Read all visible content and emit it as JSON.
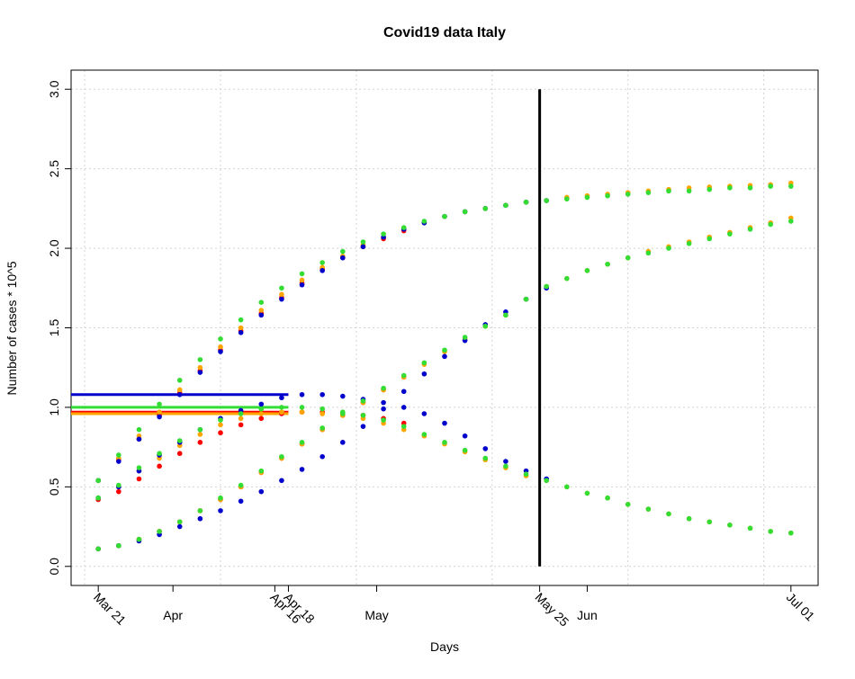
{
  "chart_data": {
    "type": "scatter",
    "title": "Covid19 data Italy",
    "x_label": "Days",
    "y_label": "Number of cases * 10^5",
    "xlim": [
      "03-17",
      "07-05"
    ],
    "ylim": [
      -0.12,
      3.12
    ],
    "xticks": [
      {
        "value": "03-21",
        "label": "Mar 21",
        "rotated": true
      },
      {
        "value": "04-01",
        "label": "Apr"
      },
      {
        "value": "04-16",
        "label": "Apr 16",
        "rotated": true
      },
      {
        "value": "04-18",
        "label": "Apr 18",
        "rotated": true
      },
      {
        "value": "05-01",
        "label": "May"
      },
      {
        "value": "05-25",
        "label": "May 25",
        "rotated": true
      },
      {
        "value": "06-01",
        "label": "Jun"
      },
      {
        "value": "07-01",
        "label": "Jul 01",
        "rotated": true
      }
    ],
    "yticks": [
      {
        "value": 0,
        "label": "0.0"
      },
      0.5,
      {
        "value": 1,
        "label": "1.0"
      },
      1.5,
      {
        "value": 2,
        "label": "2.0"
      },
      2.5,
      {
        "value": 3,
        "label": "3.0"
      }
    ],
    "grid": true,
    "xgrid": [
      "03-19",
      "04-08",
      "04-28",
      "05-18",
      "06-07",
      "06-27"
    ],
    "x": [
      "03-21",
      "03-24",
      "03-27",
      "03-30",
      "04-02",
      "04-05",
      "04-08",
      "04-11",
      "04-14",
      "04-17",
      "04-20",
      "04-23",
      "04-26",
      "04-29",
      "05-02",
      "05-05",
      "05-08",
      "05-11",
      "05-14",
      "05-17",
      "05-20",
      "05-23",
      "05-26",
      "05-29",
      "06-01",
      "06-04",
      "06-07",
      "06-10",
      "06-13",
      "06-16",
      "06-19",
      "06-22",
      "06-25",
      "06-28",
      "07-01"
    ],
    "series": [
      {
        "color": "#ff0000",
        "values": [
          0.54,
          0.67,
          0.8,
          0.95,
          1.09,
          1.23,
          1.36,
          1.48,
          1.59,
          1.69,
          1.78,
          1.87,
          1.94,
          2.01,
          2.06,
          2.11,
          null,
          null,
          null,
          null,
          null,
          null,
          null,
          null,
          null,
          null,
          null,
          null,
          null,
          null,
          null,
          null,
          null,
          null,
          null
        ]
      },
      {
        "color": "#ff0000",
        "values": [
          0.11,
          0.13,
          0.17,
          0.22,
          0.28,
          0.35,
          0.42,
          0.5,
          0.59,
          0.68,
          0.77,
          0.86,
          0.95,
          1.03,
          1.11,
          1.19,
          null,
          null,
          null,
          null,
          null,
          null,
          null,
          null,
          null,
          null,
          null,
          null,
          null,
          null,
          null,
          null,
          null,
          null,
          null
        ]
      },
      {
        "color": "#ff0000",
        "values": [
          0.42,
          0.47,
          0.55,
          0.63,
          0.71,
          0.78,
          0.84,
          0.89,
          0.93,
          0.96,
          0.97,
          0.97,
          0.96,
          0.95,
          0.93,
          0.9,
          null,
          null,
          null,
          null,
          null,
          null,
          null,
          null,
          null,
          null,
          null,
          null,
          null,
          null,
          null,
          null,
          null,
          null,
          null
        ]
      },
      {
        "color": "#ffa500",
        "values": [
          0.54,
          0.68,
          0.82,
          0.97,
          1.11,
          1.25,
          1.38,
          1.5,
          1.61,
          1.71,
          1.8,
          1.88,
          1.95,
          2.02,
          2.07,
          2.12,
          2.16,
          2.2,
          2.23,
          2.25,
          2.27,
          2.29,
          2.3,
          2.32,
          2.33,
          2.34,
          2.35,
          2.36,
          2.37,
          2.38,
          2.385,
          2.39,
          2.395,
          2.4,
          2.41
        ]
      },
      {
        "color": "#ffa500",
        "values": [
          0.11,
          0.13,
          0.17,
          0.22,
          0.28,
          0.35,
          0.42,
          0.5,
          0.59,
          0.68,
          0.77,
          0.86,
          0.95,
          1.03,
          1.11,
          1.19,
          1.27,
          1.35,
          1.43,
          1.51,
          1.58,
          1.68,
          1.76,
          1.81,
          1.86,
          1.9,
          1.94,
          1.98,
          2.01,
          2.04,
          2.07,
          2.1,
          2.13,
          2.16,
          2.19
        ]
      },
      {
        "color": "#ffa500",
        "values": [
          0.43,
          0.5,
          0.6,
          0.68,
          0.76,
          0.83,
          0.89,
          0.93,
          0.96,
          0.97,
          0.97,
          0.96,
          0.95,
          0.93,
          0.9,
          0.86,
          0.82,
          0.77,
          0.72,
          0.67,
          0.62,
          0.57,
          0.54,
          0.5,
          0.46,
          0.43,
          0.39,
          0.36,
          0.33,
          0.3,
          0.28,
          0.26,
          0.24,
          0.22,
          0.21
        ]
      },
      {
        "color": "#0000cc",
        "values": [
          0.54,
          0.66,
          0.8,
          0.94,
          1.08,
          1.22,
          1.35,
          1.47,
          1.58,
          1.68,
          1.77,
          1.86,
          1.94,
          2.01,
          2.07,
          2.12,
          2.16,
          2.2,
          2.23,
          2.25,
          2.27,
          2.29,
          2.3,
          null,
          null,
          null,
          null,
          null,
          null,
          null,
          null,
          null,
          null,
          null,
          null
        ]
      },
      {
        "color": "#0000cc",
        "values": [
          0.11,
          0.13,
          0.16,
          0.2,
          0.25,
          0.3,
          0.35,
          0.41,
          0.47,
          0.54,
          0.61,
          0.69,
          0.78,
          0.88,
          0.99,
          1.1,
          1.21,
          1.32,
          1.42,
          1.52,
          1.6,
          1.68,
          1.75,
          null,
          null,
          null,
          null,
          null,
          null,
          null,
          null,
          null,
          null,
          null,
          null
        ]
      },
      {
        "color": "#0000cc",
        "values": [
          0.43,
          0.5,
          0.6,
          0.7,
          0.78,
          0.86,
          0.93,
          0.98,
          1.02,
          1.06,
          1.08,
          1.08,
          1.07,
          1.05,
          1.03,
          1.0,
          0.96,
          0.9,
          0.82,
          0.74,
          0.66,
          0.6,
          0.55,
          null,
          null,
          null,
          null,
          null,
          null,
          null,
          null,
          null,
          null,
          null,
          null
        ]
      },
      {
        "color": "#33dd33",
        "values": [
          0.54,
          0.7,
          0.86,
          1.02,
          1.17,
          1.3,
          1.43,
          1.55,
          1.66,
          1.75,
          1.84,
          1.91,
          1.98,
          2.04,
          2.09,
          2.13,
          2.17,
          2.2,
          2.23,
          2.25,
          2.27,
          2.29,
          2.3,
          2.31,
          2.32,
          2.33,
          2.34,
          2.35,
          2.36,
          2.36,
          2.37,
          2.38,
          2.38,
          2.39,
          2.39
        ]
      },
      {
        "color": "#33dd33",
        "values": [
          0.11,
          0.13,
          0.17,
          0.22,
          0.28,
          0.35,
          0.43,
          0.51,
          0.6,
          0.69,
          0.78,
          0.87,
          0.96,
          1.04,
          1.12,
          1.2,
          1.28,
          1.36,
          1.44,
          1.51,
          1.58,
          1.68,
          1.76,
          1.81,
          1.86,
          1.9,
          1.94,
          1.97,
          2.0,
          2.03,
          2.06,
          2.09,
          2.12,
          2.15,
          2.17
        ]
      },
      {
        "color": "#33dd33",
        "values": [
          0.43,
          0.51,
          0.62,
          0.71,
          0.79,
          0.86,
          0.92,
          0.96,
          0.99,
          1.0,
          1.0,
          0.99,
          0.97,
          0.95,
          0.92,
          0.88,
          0.83,
          0.78,
          0.73,
          0.68,
          0.63,
          0.58,
          0.54,
          0.5,
          0.46,
          0.43,
          0.39,
          0.36,
          0.33,
          0.3,
          0.28,
          0.26,
          0.24,
          0.22,
          0.21
        ]
      }
    ],
    "hlines": [
      {
        "y": 1.08,
        "color": "#0000cc",
        "to": "04-18"
      },
      {
        "y": 1.0,
        "color": "#33dd33",
        "to": "04-18"
      },
      {
        "y": 0.97,
        "color": "#ff0000",
        "to": "04-18"
      },
      {
        "y": 0.96,
        "color": "#ffa500",
        "to": "04-18"
      }
    ],
    "vline": {
      "x": "05-25",
      "from": 0,
      "to": 3,
      "color": "#000000"
    }
  }
}
